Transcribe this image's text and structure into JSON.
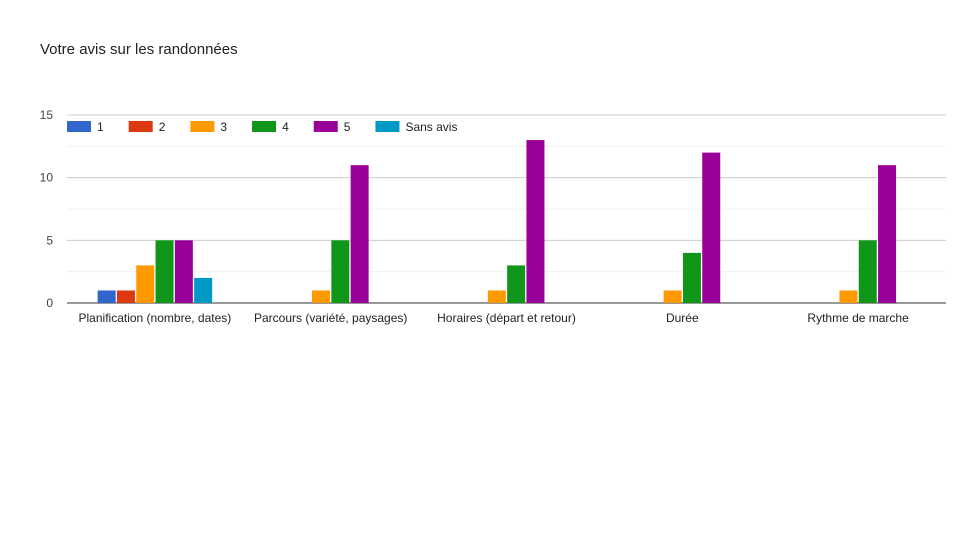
{
  "chart_data": {
    "type": "bar",
    "title": "Votre avis sur les randonnées",
    "categories": [
      "Planification (nombre, dates)",
      "Parcours (variété, paysages)",
      "Horaires (départ et retour)",
      "Durée",
      "Rythme de marche"
    ],
    "series": [
      {
        "name": "1",
        "color": "#3366cc",
        "values": [
          1,
          0,
          0,
          0,
          0
        ]
      },
      {
        "name": "2",
        "color": "#dc3912",
        "values": [
          1,
          0,
          0,
          0,
          0
        ]
      },
      {
        "name": "3",
        "color": "#ff9900",
        "values": [
          3,
          1,
          1,
          1,
          1
        ]
      },
      {
        "name": "4",
        "color": "#109618",
        "values": [
          5,
          5,
          3,
          4,
          5
        ]
      },
      {
        "name": "5",
        "color": "#990099",
        "values": [
          5,
          11,
          13,
          12,
          11
        ]
      },
      {
        "name": "Sans avis",
        "color": "#0099c6",
        "values": [
          2,
          0,
          0,
          0,
          0
        ]
      }
    ],
    "ylim": [
      0,
      15
    ],
    "yticks": [
      0,
      5,
      10,
      15
    ],
    "grid": true,
    "legend_position": "top-left",
    "xlabel": "",
    "ylabel": ""
  }
}
